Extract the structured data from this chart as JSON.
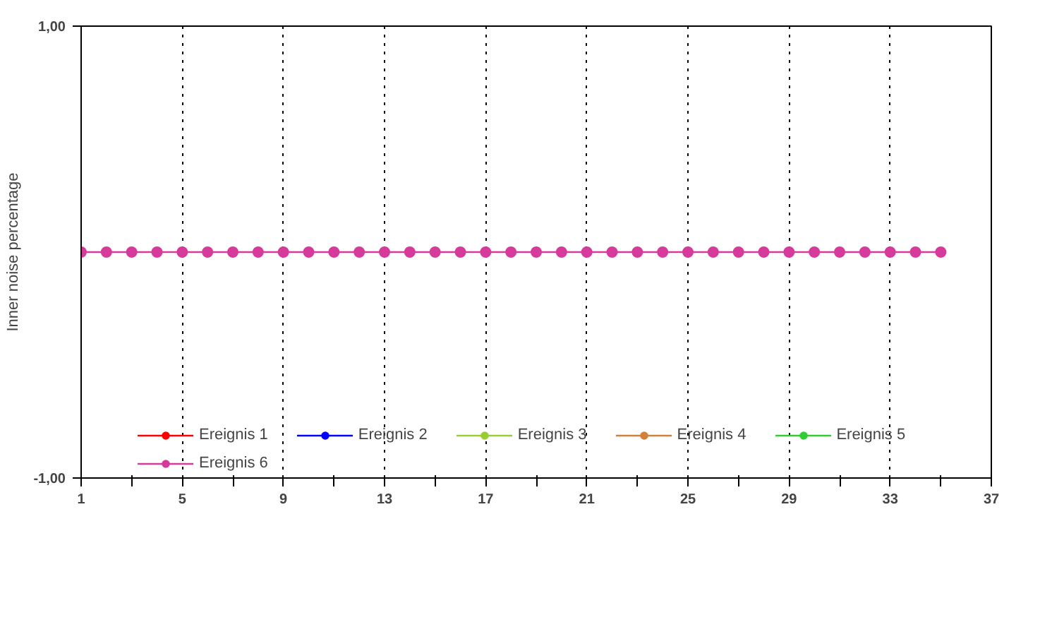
{
  "chart_data": {
    "type": "line",
    "ylabel": "Inner noise percentage",
    "x": [
      1,
      2,
      3,
      4,
      5,
      6,
      7,
      8,
      9,
      10,
      11,
      12,
      13,
      14,
      15,
      16,
      17,
      18,
      19,
      20,
      21,
      22,
      23,
      24,
      25,
      26,
      27,
      28,
      29,
      30,
      31,
      32,
      33,
      34,
      35
    ],
    "xlim": [
      1,
      37
    ],
    "xticks": [
      1,
      {
        "value": 3,
        "label": null
      },
      5,
      {
        "value": 7,
        "label": null
      },
      9,
      {
        "value": 11,
        "label": null
      },
      13,
      {
        "value": 15,
        "label": null
      },
      17,
      {
        "value": 19,
        "label": null
      },
      21,
      {
        "value": 23,
        "label": null
      },
      25,
      {
        "value": 27,
        "label": null
      },
      29,
      {
        "value": 31,
        "label": null
      },
      33,
      {
        "value": 35,
        "label": null
      },
      37
    ],
    "ylim": [
      -1,
      1
    ],
    "yticks": [
      {
        "value": -1,
        "label": "-1,00"
      },
      {
        "value": 1,
        "label": "1,00"
      }
    ],
    "grid": "x",
    "legend": "bottom",
    "marker": "circle",
    "line_style": "solid",
    "series": [
      {
        "name": "Ereignis 1",
        "color": "#ff0000",
        "values": [
          null,
          null,
          null,
          null,
          null,
          null,
          null,
          null,
          null,
          null,
          null,
          null,
          null,
          null,
          null,
          null,
          null,
          null,
          null,
          null,
          null,
          null,
          null,
          null,
          null,
          null,
          null,
          null,
          null,
          null,
          null,
          null,
          null,
          null,
          null
        ]
      },
      {
        "name": "Ereignis 2",
        "color": "#0000ff",
        "values": [
          null,
          null,
          null,
          null,
          null,
          null,
          null,
          null,
          null,
          null,
          null,
          null,
          null,
          null,
          null,
          null,
          null,
          null,
          null,
          null,
          null,
          null,
          null,
          null,
          null,
          null,
          null,
          null,
          null,
          null,
          null,
          null,
          null,
          null,
          null
        ]
      },
      {
        "name": "Ereignis 3",
        "color": "#9acd32",
        "values": [
          null,
          null,
          null,
          null,
          null,
          null,
          null,
          null,
          null,
          null,
          null,
          null,
          null,
          null,
          null,
          null,
          null,
          null,
          null,
          null,
          null,
          null,
          null,
          null,
          null,
          null,
          null,
          null,
          null,
          null,
          null,
          null,
          null,
          null,
          null
        ]
      },
      {
        "name": "Ereignis 4",
        "color": "#d2813a",
        "values": [
          null,
          null,
          null,
          null,
          null,
          null,
          null,
          null,
          null,
          null,
          null,
          null,
          null,
          null,
          null,
          null,
          null,
          null,
          null,
          null,
          null,
          null,
          null,
          null,
          null,
          null,
          null,
          null,
          null,
          null,
          null,
          null,
          null,
          null,
          null
        ]
      },
      {
        "name": "Ereignis 5",
        "color": "#32cd32",
        "values": [
          null,
          null,
          null,
          null,
          null,
          null,
          null,
          null,
          null,
          null,
          null,
          null,
          null,
          null,
          null,
          null,
          null,
          null,
          null,
          null,
          null,
          null,
          null,
          null,
          null,
          null,
          null,
          null,
          null,
          null,
          null,
          null,
          null,
          null,
          null
        ]
      },
      {
        "name": "Ereignis 6",
        "color": "#d63a9a",
        "values": [
          0,
          0,
          0,
          0,
          0,
          0,
          0,
          0,
          0,
          0,
          0,
          0,
          0,
          0,
          0,
          0,
          0,
          0,
          0,
          0,
          0,
          0,
          0,
          0,
          0,
          0,
          0,
          0,
          0,
          0,
          0,
          0,
          0,
          0,
          0
        ]
      }
    ]
  }
}
